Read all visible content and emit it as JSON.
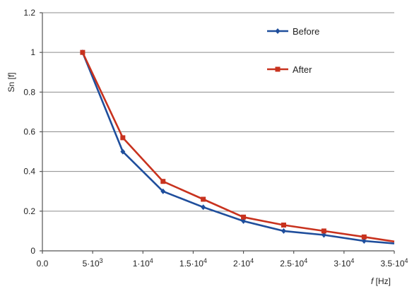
{
  "chart_data": {
    "type": "line",
    "xlabel": "f [Hz]",
    "ylabel": "Sn [f]",
    "xlim": [
      0,
      35000
    ],
    "ylim": [
      0,
      1.2
    ],
    "grid": "horizontal",
    "legend_position": "top-right",
    "x_ticks": [
      0,
      5000,
      10000,
      15000,
      20000,
      25000,
      30000,
      35000
    ],
    "x_tick_labels": [
      {
        "base": "0.0",
        "exp": ""
      },
      {
        "base": "5·10",
        "exp": "3"
      },
      {
        "base": "1·10",
        "exp": "4"
      },
      {
        "base": "1.5·10",
        "exp": "4"
      },
      {
        "base": "2·10",
        "exp": "4"
      },
      {
        "base": "2.5·10",
        "exp": "4"
      },
      {
        "base": "3·10",
        "exp": "4"
      },
      {
        "base": "3.5·10",
        "exp": "4"
      }
    ],
    "y_ticks": [
      0,
      0.2,
      0.4,
      0.6,
      0.8,
      1,
      1.2
    ],
    "y_tick_labels": [
      "0",
      "0.2",
      "0.4",
      "0.6",
      "0.8",
      "1",
      "1.2"
    ],
    "x": [
      4000,
      8000,
      12000,
      16000,
      20000,
      24000,
      28000,
      32000,
      35000
    ],
    "series": [
      {
        "name": "Before",
        "color": "#1f4e9c",
        "marker": "diamond",
        "values": [
          1.0,
          0.5,
          0.3,
          0.22,
          0.15,
          0.1,
          0.08,
          0.05,
          0.037
        ]
      },
      {
        "name": "After",
        "color": "#c8321e",
        "marker": "square",
        "values": [
          1.0,
          0.57,
          0.35,
          0.26,
          0.17,
          0.13,
          0.1,
          0.07,
          0.047
        ]
      }
    ]
  }
}
